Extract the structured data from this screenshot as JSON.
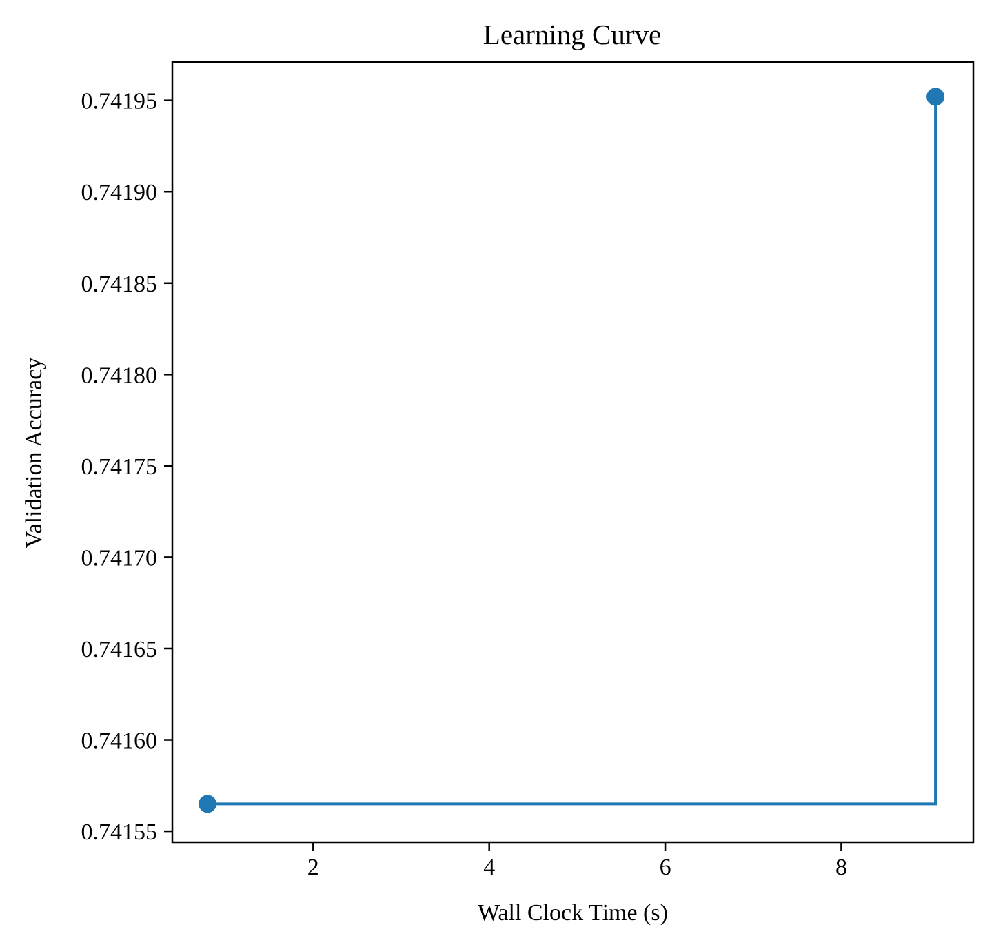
{
  "chart_data": {
    "type": "line",
    "title": "Learning Curve",
    "xlabel": "Wall Clock Time (s)",
    "ylabel": "Validation Accuracy",
    "xlim": [
      0.4,
      9.5
    ],
    "ylim": [
      0.741544,
      0.741971
    ],
    "xticks": [
      2,
      4,
      6,
      8
    ],
    "xtick_labels": [
      "2",
      "4",
      "6",
      "8"
    ],
    "yticks": [
      0.74155,
      0.7416,
      0.74165,
      0.7417,
      0.74175,
      0.7418,
      0.74185,
      0.7419,
      0.74195
    ],
    "ytick_labels": [
      "0.74155",
      "0.74160",
      "0.74165",
      "0.74170",
      "0.74175",
      "0.74180",
      "0.74185",
      "0.74190",
      "0.74195"
    ],
    "grid": false,
    "drawstyle": "steps-post",
    "series": [
      {
        "color": "#1f77b4",
        "x": [
          0.8,
          9.07
        ],
        "y": [
          0.741565,
          0.741952
        ]
      }
    ]
  }
}
